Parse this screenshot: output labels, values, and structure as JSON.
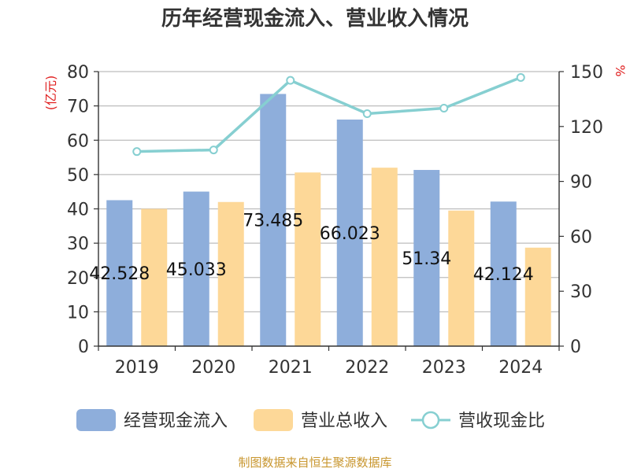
{
  "chart_data": {
    "type": "bar",
    "title": "历年经营现金流入、营业收入情况",
    "categories": [
      "2019",
      "2020",
      "2021",
      "2022",
      "2023",
      "2024"
    ],
    "series": [
      {
        "name": "经营现金流入",
        "kind": "bar",
        "axis": "left",
        "color": "#8eaedb",
        "values": [
          42.528,
          45.033,
          73.485,
          66.023,
          51.34,
          42.124
        ],
        "labels": [
          "42.528",
          "45.033",
          "73.485",
          "66.023",
          "51.34",
          "42.124"
        ]
      },
      {
        "name": "营业总收入",
        "kind": "bar",
        "axis": "left",
        "color": "#fdd898",
        "values": [
          40.0,
          42.0,
          50.6,
          52.0,
          39.5,
          28.7
        ]
      },
      {
        "name": "营收现金比",
        "kind": "line",
        "axis": "right",
        "color": "#86cfd1",
        "values": [
          106.3,
          107.2,
          145.2,
          127.0,
          130.0,
          146.8
        ]
      }
    ],
    "y_left": {
      "label": "(亿元)",
      "min": 0,
      "max": 80,
      "ticks": [
        0,
        10,
        20,
        30,
        40,
        50,
        60,
        70,
        80
      ]
    },
    "y_right": {
      "label": "%",
      "min": 0,
      "max": 150,
      "ticks": [
        0,
        30,
        60,
        90,
        120,
        150
      ]
    },
    "grid": true,
    "legend_position": "bottom"
  },
  "source": "制图数据来自恒生聚源数据库"
}
